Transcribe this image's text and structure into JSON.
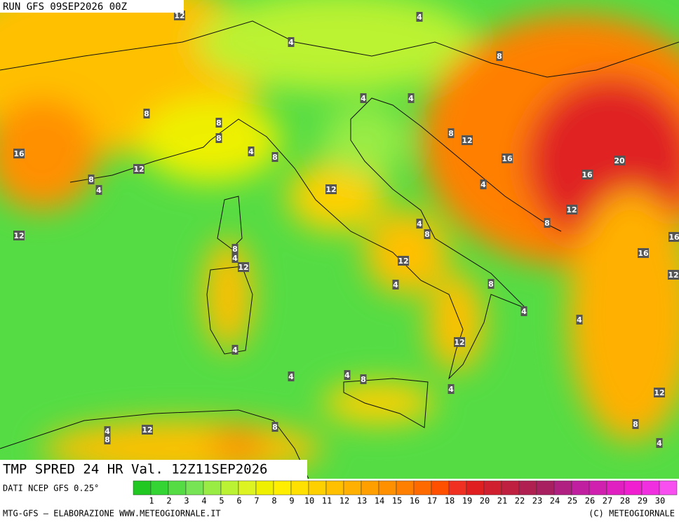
{
  "header": {
    "run": "RUN GFS 09SEP2026 00Z"
  },
  "footer": {
    "field": "TMP SPRED 24 HR Val. 12Z11SEP2026",
    "source": "DATI NCEP GFS 0.25°",
    "credit": "MTG-GFS — ELABORAZIONE WWW.METEOGIORNALE.IT",
    "copyright": "(C) METEOGIORNALE"
  },
  "contour_labels": [
    12,
    4,
    4,
    8,
    4,
    4,
    8,
    8,
    8,
    8,
    12,
    16,
    4,
    8,
    16,
    20,
    12,
    8,
    4,
    16,
    4,
    12,
    12,
    8,
    4,
    8,
    12,
    8,
    4,
    12,
    16,
    12,
    12,
    16,
    4,
    8,
    4,
    4,
    4,
    12,
    4,
    4,
    8,
    4,
    12,
    8,
    12,
    4,
    8,
    8,
    4
  ],
  "colorbar": {
    "values": [
      1,
      2,
      3,
      4,
      5,
      6,
      7,
      8,
      9,
      10,
      11,
      12,
      13,
      14,
      15,
      16,
      17,
      18,
      19,
      20,
      21,
      22,
      23,
      24,
      25,
      26,
      27,
      28,
      29,
      30
    ],
    "colors": [
      "#22c822",
      "#33d433",
      "#55dc44",
      "#77e455",
      "#99ec44",
      "#bbf233",
      "#ddf422",
      "#eef000",
      "#ffee00",
      "#ffe000",
      "#ffd000",
      "#ffc000",
      "#ffb000",
      "#ffa000",
      "#ff9000",
      "#ff8000",
      "#ff6a00",
      "#ff5000",
      "#f03020",
      "#e02020",
      "#d02030",
      "#c02040",
      "#b02050",
      "#a82060",
      "#b02080",
      "#c020a0",
      "#d020b0",
      "#e020c0",
      "#f020d0",
      "#f030e0",
      "#f850f0"
    ]
  }
}
